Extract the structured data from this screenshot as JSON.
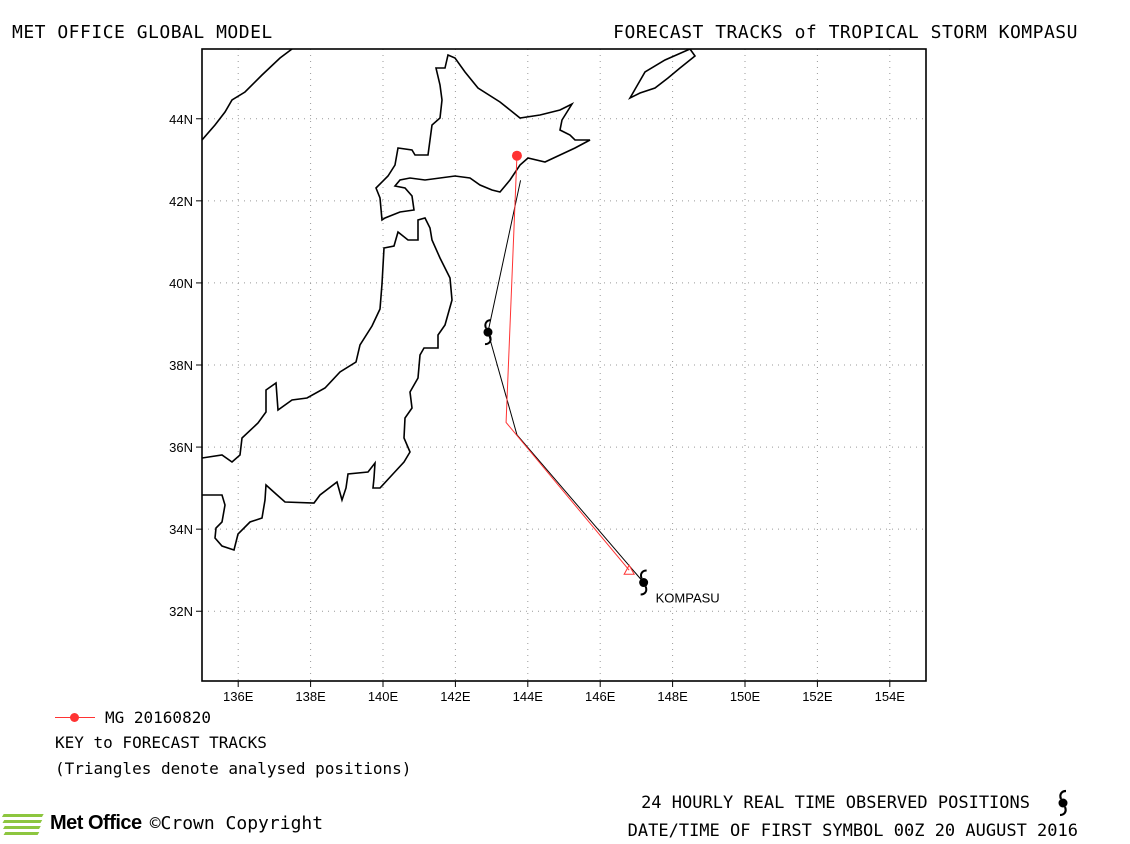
{
  "header": {
    "title_left": "MET OFFICE GLOBAL MODEL",
    "title_right": "FORECAST TRACKS of TROPICAL STORM KOMPASU"
  },
  "map": {
    "lon_range": [
      135,
      155
    ],
    "lat_range": [
      30.3,
      45.7
    ],
    "grid": "dotted",
    "x_ticks": [
      "136E",
      "138E",
      "140E",
      "142E",
      "144E",
      "146E",
      "148E",
      "150E",
      "152E",
      "154E"
    ],
    "x_tick_values": [
      136,
      138,
      140,
      142,
      144,
      146,
      148,
      150,
      152,
      154
    ],
    "y_ticks": [
      "32N",
      "34N",
      "36N",
      "38N",
      "40N",
      "42N",
      "44N"
    ],
    "y_tick_values": [
      32,
      34,
      36,
      38,
      40,
      42,
      44
    ],
    "colors": {
      "coast": "#000000",
      "grid": "#999999",
      "forecast_track": "#ff3333",
      "observed_track": "#000000"
    }
  },
  "tracks": {
    "observed": {
      "name": "KOMPASU",
      "label": "KOMPASU",
      "points": [
        [
          147.2,
          32.7
        ],
        [
          143.7,
          36.3
        ],
        [
          142.9,
          38.8
        ],
        [
          143.8,
          42.5
        ]
      ],
      "symbol_points": [
        [
          147.2,
          32.7
        ],
        [
          142.9,
          38.8
        ]
      ]
    },
    "forecast": {
      "name": "MG 20160820",
      "analysed_start": [
        146.8,
        33.0
      ],
      "points": [
        [
          146.8,
          33.0
        ],
        [
          143.4,
          36.6
        ],
        [
          143.7,
          43.1
        ]
      ],
      "end_marker": [
        143.7,
        43.1
      ]
    }
  },
  "legend": {
    "series_label": "MG 20160820",
    "key_title": "KEY to FORECAST TRACKS",
    "note": "(Triangles denote analysed positions)"
  },
  "footer": {
    "observed_label": "24 HOURLY REAL TIME OBSERVED POSITIONS",
    "first_symbol": "DATE/TIME OF FIRST SYMBOL 00Z 20 AUGUST 2016",
    "logo_text": "Met Office",
    "copyright": "©Crown Copyright"
  }
}
